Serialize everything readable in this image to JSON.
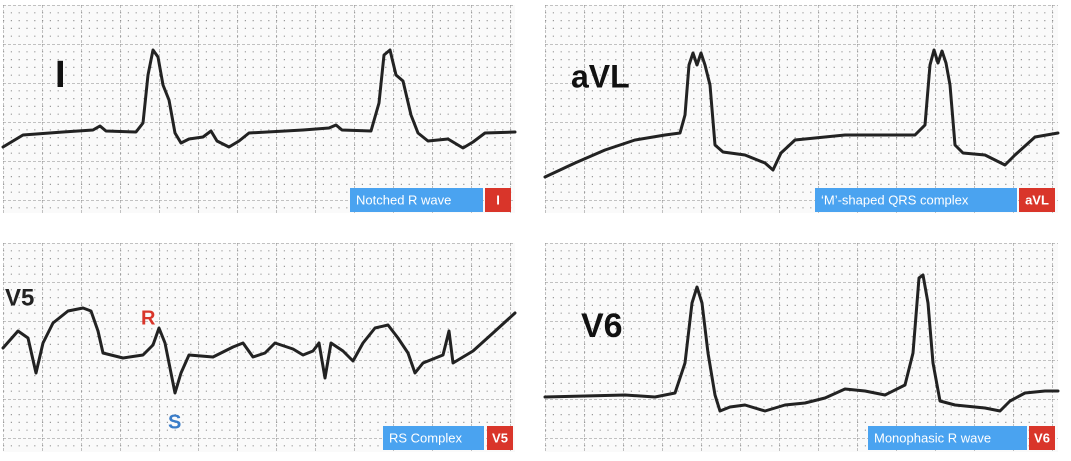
{
  "panels": [
    {
      "lead_label": "I",
      "caption": "Notched R wave",
      "lead_tag": "I"
    },
    {
      "lead_label": "aVL",
      "caption": "‘M’-shaped QRS complex",
      "lead_tag": "aVL"
    },
    {
      "lead_label": "V5",
      "caption": "RS Complex",
      "lead_tag": "V5",
      "annotations": [
        "R",
        "S"
      ]
    },
    {
      "lead_label": "V6",
      "caption": "Monophasic R wave",
      "lead_tag": "V6"
    }
  ]
}
